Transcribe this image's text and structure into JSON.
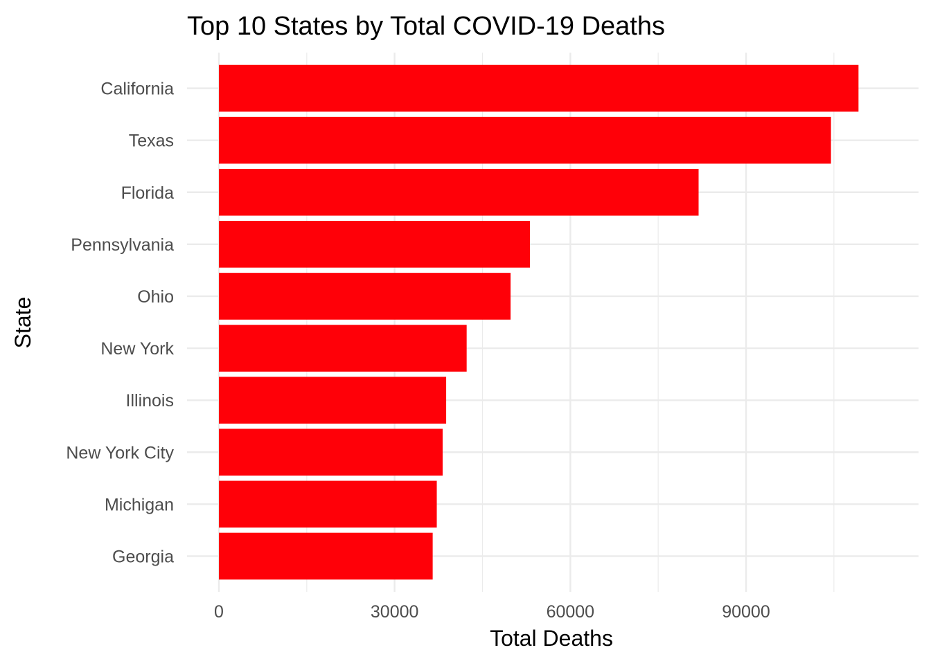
{
  "chart_data": {
    "type": "bar",
    "orientation": "horizontal",
    "title": "Top 10 States by Total COVID-19 Deaths",
    "xlabel": "Total Deaths",
    "ylabel": "State",
    "categories": [
      "California",
      "Texas",
      "Florida",
      "Pennsylvania",
      "Ohio",
      "New York",
      "Illinois",
      "New York City",
      "Michigan",
      "Georgia"
    ],
    "values": [
      109200,
      104500,
      81900,
      53100,
      49800,
      42300,
      38800,
      38200,
      37200,
      36500
    ],
    "xlim": [
      0,
      114600
    ],
    "xticks": [
      0,
      30000,
      60000,
      90000
    ],
    "x_tick_labels": [
      "0",
      "30000",
      "60000",
      "90000"
    ],
    "grid": true,
    "colors": {
      "bar": "#ff0008",
      "grid": "#ebebeb",
      "tick_text": "#4d4d4d",
      "title_text": "#000000"
    }
  }
}
